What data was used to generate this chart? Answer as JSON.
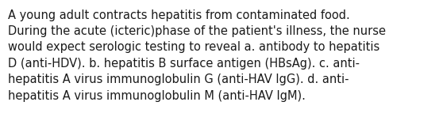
{
  "text": "A young adult contracts hepatitis from contaminated food.\nDuring the acute (icteric)phase of the patient's illness, the nurse\nwould expect serologic testing to reveal a. antibody to hepatitis\nD (anti-HDV). b. hepatitis B surface antigen (HBsAg). c. anti-\nhepatitis A virus immunoglobulin G (anti-HAV IgG). d. anti-\nhepatitis A virus immunoglobulin M (anti-HAV IgM).",
  "background_color": "#ffffff",
  "text_color": "#1a1a1a",
  "font_size": 10.5,
  "fig_width": 5.58,
  "fig_height": 1.67,
  "dpi": 100
}
